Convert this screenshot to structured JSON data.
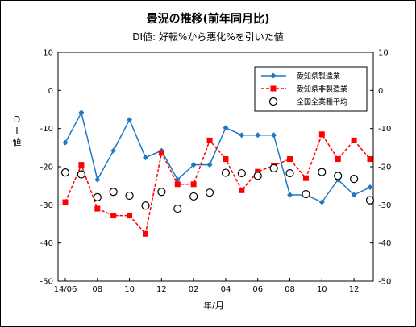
{
  "chart_data": {
    "type": "line",
    "title": "景況の推移(前年同月比)",
    "subtitle": "DI値: 好転%から悪化%を引いた値",
    "xlabel": "年/月",
    "ylabel": "DI値",
    "ylim": [
      -50,
      10
    ],
    "yticks": [
      10,
      0,
      -10,
      -20,
      -30,
      -40,
      -50
    ],
    "x": [
      "14/06",
      "14/07",
      "14/08",
      "14/09",
      "14/10",
      "14/11",
      "14/12",
      "15/01",
      "15/02",
      "15/03",
      "15/04",
      "15/05",
      "15/06",
      "15/07",
      "15/08",
      "15/09",
      "15/10",
      "15/11",
      "15/12",
      "16/01"
    ],
    "x_tick_labels": [
      "14/06",
      "08",
      "10",
      "12",
      "02",
      "04",
      "06",
      "08",
      "10",
      "12"
    ],
    "grid": false,
    "legend": "top-right",
    "series": [
      {
        "name": "愛知県製造業",
        "color": "#1f77c4",
        "line": "solid",
        "marker": "diamond",
        "values": [
          -13.7,
          -5.8,
          -23.4,
          -15.8,
          -7.7,
          -17.6,
          -15.8,
          -23.4,
          -19.5,
          -19.5,
          -9.8,
          -11.7,
          -11.7,
          -11.7,
          -27.4,
          -27.4,
          -29.3,
          -23.4,
          -27.4,
          -25.4
        ]
      },
      {
        "name": "愛知県非製造業",
        "color": "#ff0000",
        "line": "dashed",
        "marker": "square",
        "values": [
          -29.3,
          -19.5,
          -31.0,
          -32.8,
          -32.8,
          -37.6,
          -16.4,
          -24.6,
          -24.6,
          -13.1,
          -18.0,
          -26.2,
          -21.3,
          -19.7,
          -18.0,
          -23.0,
          -11.5,
          -18.0,
          -13.1,
          -18.0
        ]
      },
      {
        "name": "全国全業種平均",
        "color": "#000000",
        "line": "none",
        "marker": "circle-open",
        "values": [
          -21.5,
          -22.0,
          -28.0,
          -26.6,
          -27.6,
          -30.2,
          -26.6,
          -31.0,
          -27.8,
          -26.8,
          -21.6,
          -21.7,
          -22.4,
          -20.4,
          -21.7,
          -27.2,
          -21.4,
          -22.4,
          -23.2,
          -28.8
        ]
      }
    ]
  }
}
